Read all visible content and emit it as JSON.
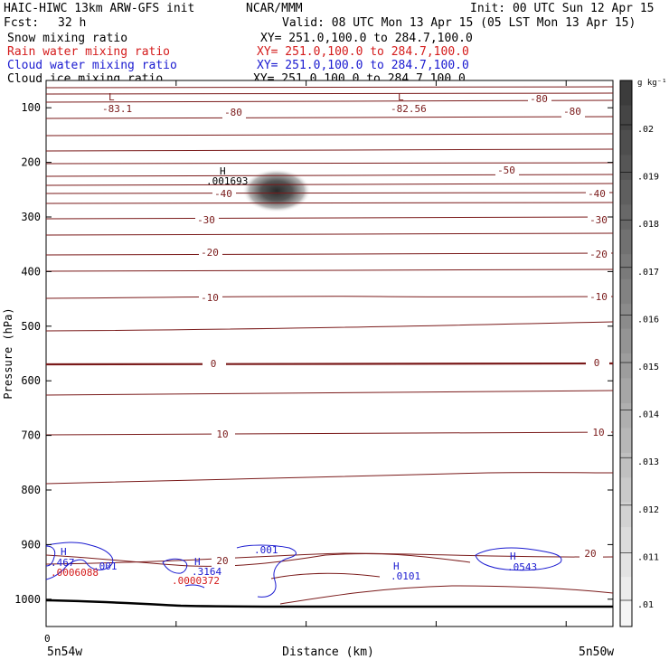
{
  "header": {
    "model": "HAIC-HIWC 13km ARW-GFS init",
    "org": "NCAR/MMM",
    "init": "Init: 00 UTC Sun 12 Apr 15",
    "fcst_label": "Fcst:",
    "fcst_value": "32 h",
    "valid": "Valid: 08 UTC Mon 13 Apr 15 (05 LST Mon 13 Apr 15)"
  },
  "fields": [
    {
      "name": "Snow mixing ratio",
      "xy": "XY= 251.0,100.0 to 284.7,100.0",
      "color": "#000000"
    },
    {
      "name": "Rain water mixing ratio",
      "xy": "XY= 251.0,100.0 to 284.7,100.0",
      "color": "#d41b1b"
    },
    {
      "name": "Cloud water mixing ratio",
      "xy": "XY= 251.0,100.0 to 284.7,100.0",
      "color": "#1a1ad0"
    },
    {
      "name": "Cloud ice mixing ratio",
      "xy": "XY= 251.0,100.0 to 284.7,100.0",
      "color": "#000000"
    }
  ],
  "chart_data": {
    "type": "contour",
    "xlabel": "Distance (km)",
    "ylabel": "Pressure (hPa)",
    "x_start_label": "0",
    "x_left_label": "5n54w",
    "x_right_label": "5n50w",
    "ylim": [
      1050,
      50
    ],
    "y_ticks": [
      100,
      200,
      300,
      400,
      500,
      600,
      700,
      800,
      900,
      1000
    ],
    "colorbar": {
      "unit_label": "g kg⁻¹",
      "ticks": [
        ".02",
        ".019",
        ".018",
        ".017",
        ".016",
        ".015",
        ".014",
        ".013",
        ".012",
        ".011",
        ".01"
      ]
    },
    "temperature_contours": [
      {
        "label": "-80",
        "color": "#7a1a1a"
      },
      {
        "label": "-50",
        "color": "#7a1a1a"
      },
      {
        "label": "-40",
        "color": "#7a1a1a"
      },
      {
        "label": "-30",
        "color": "#7a1a1a"
      },
      {
        "label": "-20",
        "color": "#7a1a1a"
      },
      {
        "label": "-10",
        "color": "#7a1a1a"
      },
      {
        "label": "0",
        "color": "#7a1a1a"
      },
      {
        "label": "10",
        "color": "#7a1a1a"
      },
      {
        "label": "20",
        "color": "#7a1a1a"
      }
    ],
    "annotations": [
      {
        "text": "L",
        "color": "#7a1a1a"
      },
      {
        "text": "-83.1",
        "color": "#7a1a1a"
      },
      {
        "text": "L",
        "color": "#7a1a1a"
      },
      {
        "text": "-82.56",
        "color": "#7a1a1a"
      },
      {
        "text": "H",
        "color": "#000000"
      },
      {
        "text": ".001693",
        "color": "#000000"
      },
      {
        "text": "H",
        "color": "#1a1ad0"
      },
      {
        "text": ".467",
        "color": "#1a1ad0"
      },
      {
        "text": ".0006088",
        "color": "#d41b1b"
      },
      {
        "text": ".001",
        "color": "#1a1ad0"
      },
      {
        "text": "H",
        "color": "#1a1ad0"
      },
      {
        "text": ".3164",
        "color": "#1a1ad0"
      },
      {
        "text": ".0000372",
        "color": "#d41b1b"
      },
      {
        "text": ".001",
        "color": "#1a1ad0"
      },
      {
        "text": "H",
        "color": "#1a1ad0"
      },
      {
        "text": ".0101",
        "color": "#1a1ad0"
      },
      {
        "text": "H",
        "color": "#1a1ad0"
      },
      {
        "text": ".0543",
        "color": "#1a1ad0"
      }
    ]
  }
}
